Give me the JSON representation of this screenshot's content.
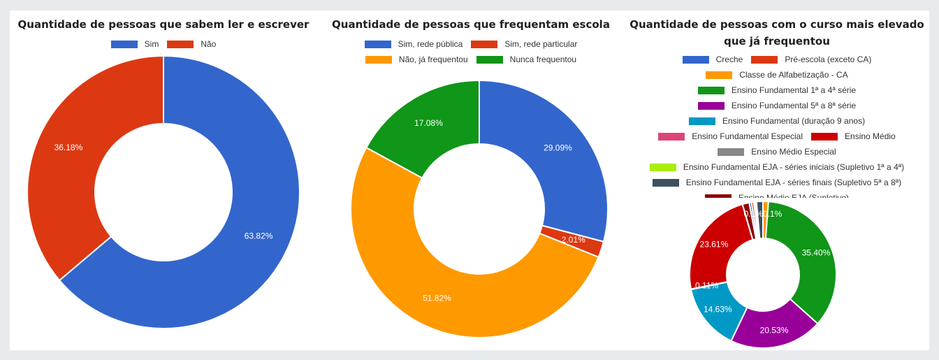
{
  "chart_data": [
    {
      "type": "pie",
      "donut": true,
      "title": "Quantidade de pessoas que sabem ler e escrever",
      "legend_position": "top",
      "slices": [
        {
          "label": "Sim",
          "value": 63.82,
          "value_label": "63.82%",
          "color": "#3366cc"
        },
        {
          "label": "Não",
          "value": 36.18,
          "value_label": "36.18%",
          "color": "#dc3912"
        }
      ]
    },
    {
      "type": "pie",
      "donut": true,
      "title": "Quantidade de pessoas que frequentam escola",
      "legend_position": "top",
      "slices": [
        {
          "label": "Sim, rede pública",
          "value": 29.09,
          "value_label": "29.09%",
          "color": "#3366cc"
        },
        {
          "label": "Sim, rede particular",
          "value": 2.01,
          "value_label": "2.01%",
          "color": "#dc3912"
        },
        {
          "label": "Não, já frequentou",
          "value": 51.82,
          "value_label": "51.82%",
          "color": "#ff9900"
        },
        {
          "label": "Nunca frequentou",
          "value": 17.08,
          "value_label": "17.08%",
          "color": "#109618"
        }
      ]
    },
    {
      "type": "pie",
      "donut": true,
      "title": "Quantidade de pessoas com o curso mais elevado que já frequentou",
      "legend_position": "top",
      "slices": [
        {
          "label": "Classe de Alfabetização - CA",
          "value": 1.2,
          "value_label": "",
          "color": "#ff9900"
        },
        {
          "label": "Ensino Fundamental 1ª a 4ª série",
          "value": 35.4,
          "value_label": "35.40%",
          "color": "#109618"
        },
        {
          "label": "Ensino Fundamental 5ª a 8ª série",
          "value": 20.53,
          "value_label": "20.53%",
          "color": "#990099"
        },
        {
          "label": "Ensino Fundamental (duração 9 anos)",
          "value": 14.63,
          "value_label": "14.63%",
          "color": "#0099c6"
        },
        {
          "label": "Ensino Fundamental Especial",
          "value": 0.11,
          "value_label": "0.11%",
          "color": "#dd4477"
        },
        {
          "label": "Ensino Médio",
          "value": 23.61,
          "value_label": "23.61%",
          "color": "#cc0000"
        },
        {
          "label": "Ensino Médio EJA (Supletivo)",
          "value": 1.5,
          "value_label": "",
          "color": "#8b0707"
        },
        {
          "label": "Creche",
          "value": 0.5,
          "value_label": "",
          "color": "#3366cc"
        },
        {
          "label": "Pré-escola (exceto CA)",
          "value": 0.5,
          "value_label": "",
          "color": "#dc3912"
        },
        {
          "label": "Ensino Médio Especial",
          "value": 0.3,
          "value_label": "",
          "color": "#888888"
        },
        {
          "label": "Ensino Fundamental EJA - séries iniciais (Supletivo 1ª a 4ª)",
          "value": 0.3,
          "value_label": "",
          "color": "#aaee11"
        },
        {
          "label": "Ensino Fundamental EJA - séries finais (Supletivo 5ª a 8ª)",
          "value": 1.41,
          "value_label": "",
          "color": "#3d5060"
        }
      ],
      "top_cluster_label": "0.1%0.1%"
    }
  ],
  "legend3_rows": [
    [
      "Creche",
      "Pré-escola (exceto CA)"
    ],
    [
      "Classe de Alfabetização - CA"
    ],
    [
      "Ensino Fundamental 1ª a 4ª série"
    ],
    [
      "Ensino Fundamental 5ª a 8ª série"
    ],
    [
      "Ensino Fundamental (duração 9 anos)"
    ],
    [
      "Ensino Fundamental Especial",
      "Ensino Médio"
    ],
    [
      "Ensino Médio Especial"
    ],
    [
      "Ensino Fundamental EJA - séries iniciais (Supletivo 1ª a 4ª)"
    ],
    [
      "Ensino Fundamental EJA - séries finais (Supletivo 5ª a 8ª)"
    ],
    [
      "Ensino Médio EJA (Supletivo)"
    ]
  ]
}
